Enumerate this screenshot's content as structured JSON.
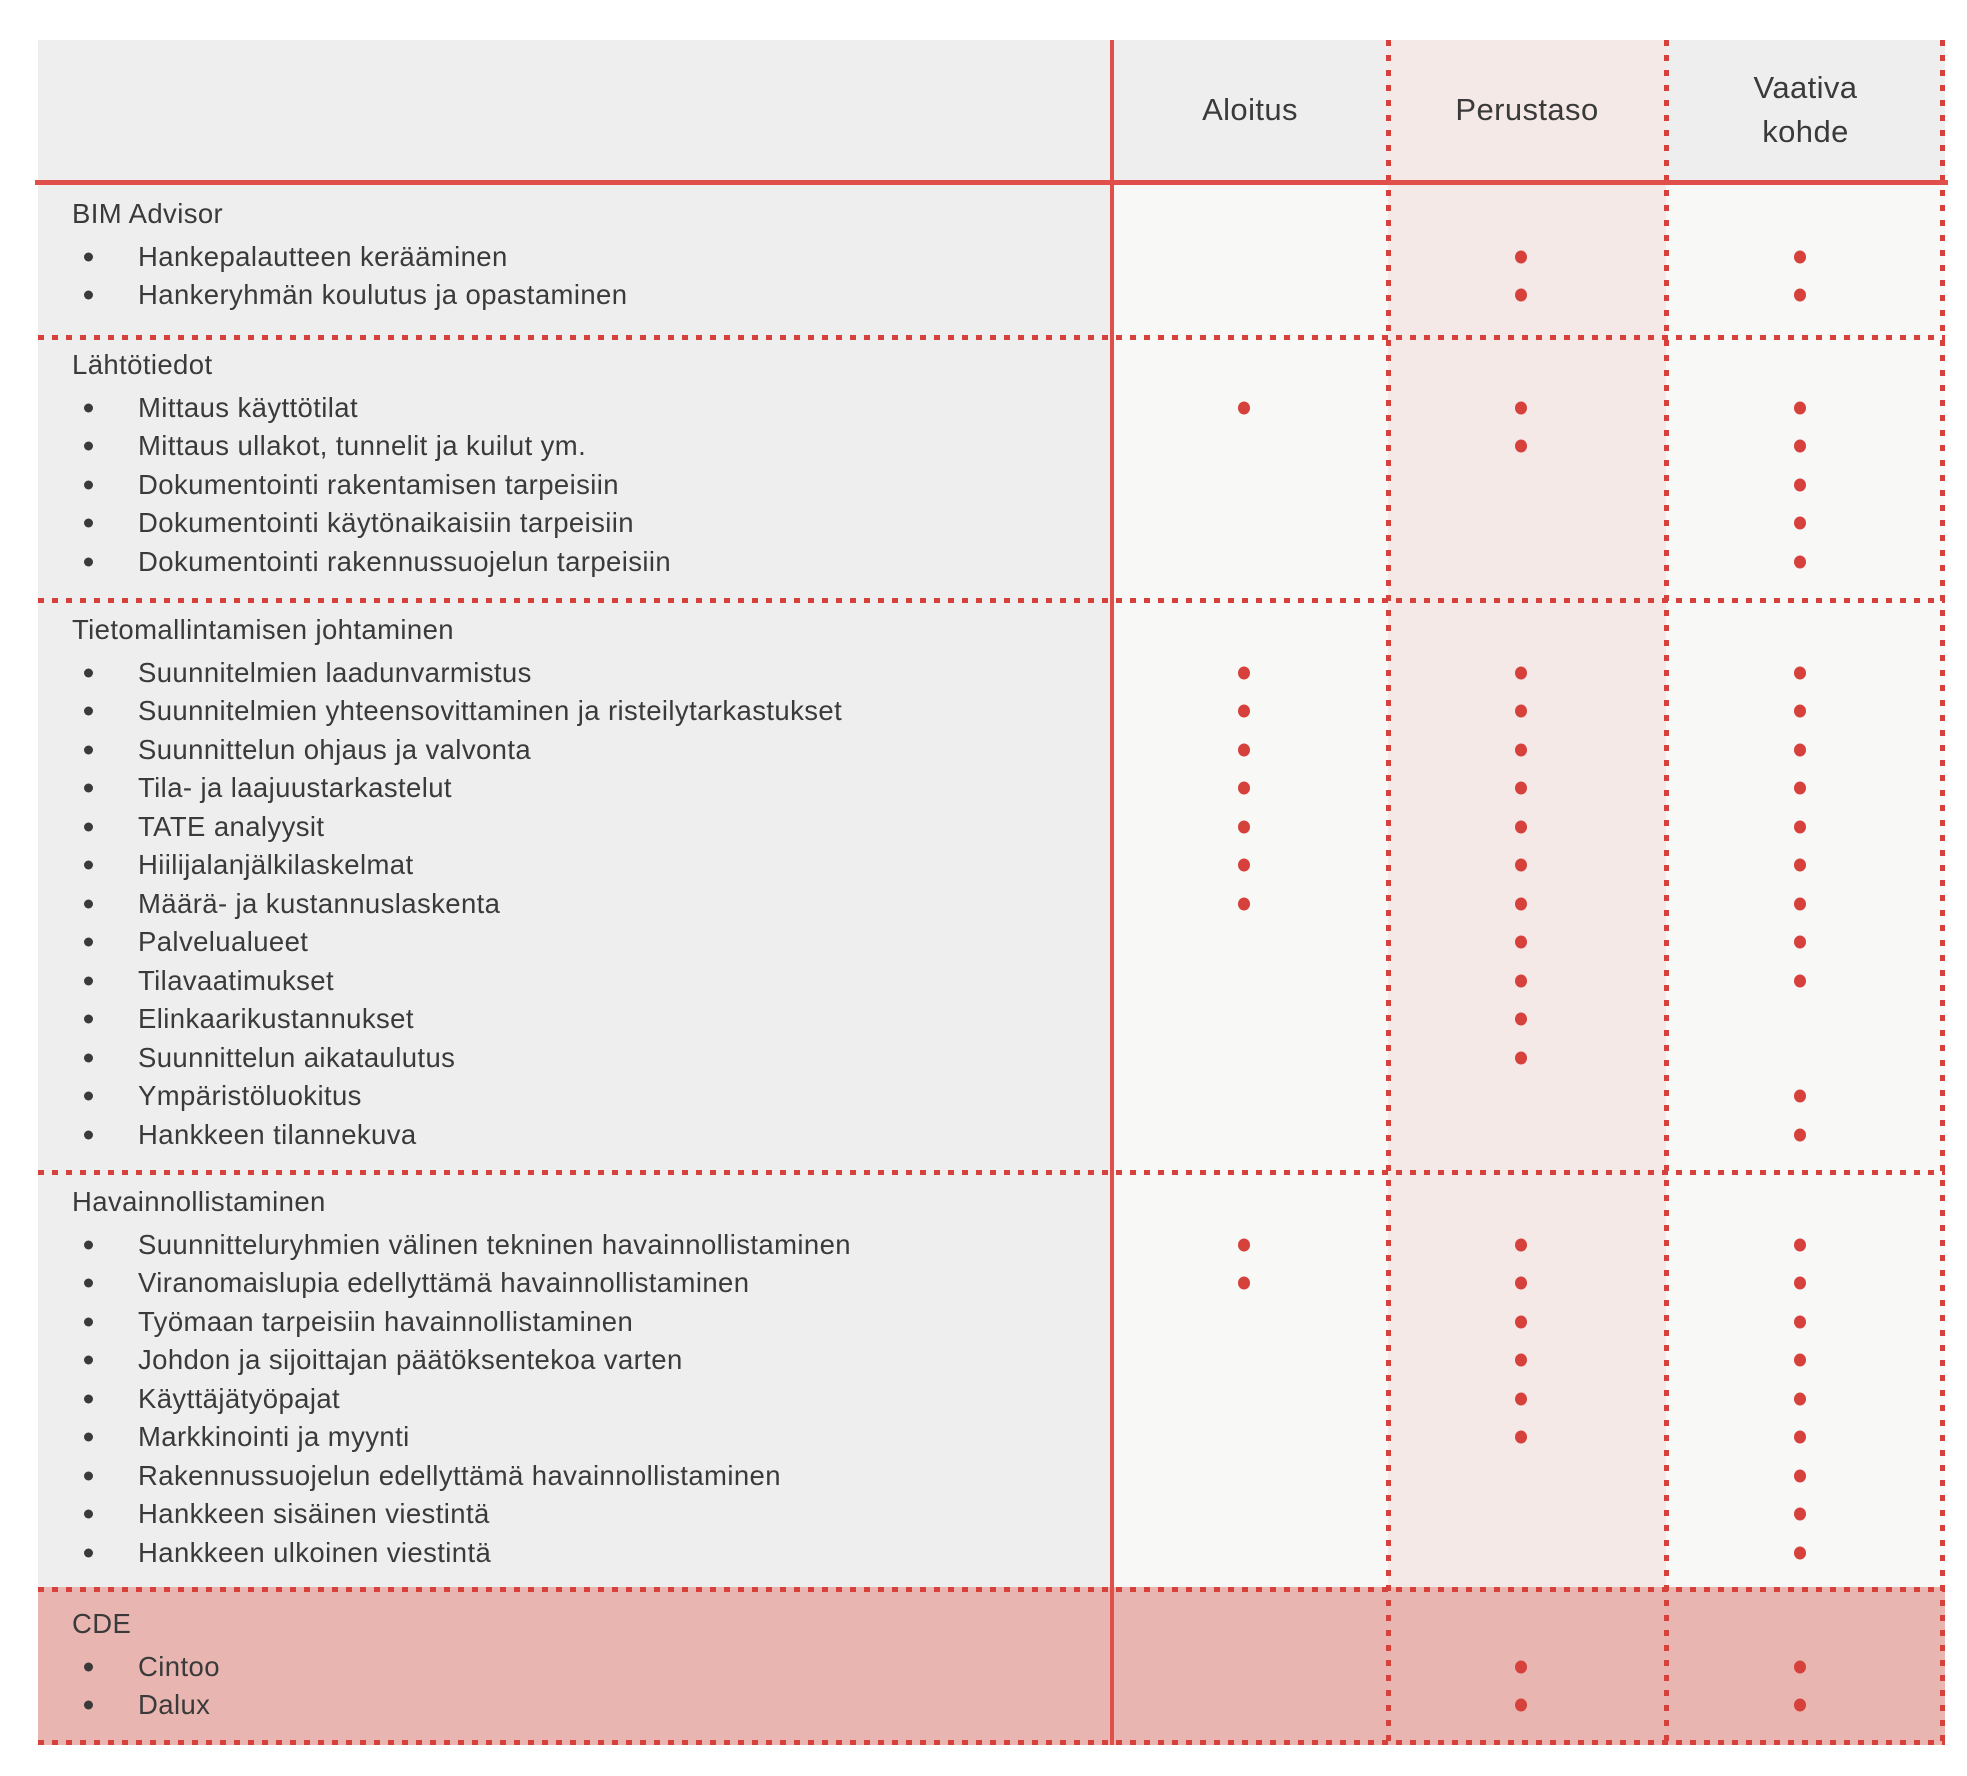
{
  "colors": {
    "line_red": "#e04f4a",
    "dot_red": "#d6413c",
    "perustaso_bg": "#f5e9e7",
    "cde_bg": "#e9b5b1"
  },
  "header": {
    "columns": [
      {
        "key": "aloitus",
        "label": "Aloitus"
      },
      {
        "key": "perustaso",
        "label": "Perustaso"
      },
      {
        "key": "vaativa-kohde",
        "label": "Vaativa kohde"
      }
    ]
  },
  "sections": [
    {
      "title": "BIM Advisor",
      "highlight": false,
      "rows": [
        {
          "label": "Hankepalautteen kerääminen",
          "dots": [
            false,
            true,
            true
          ]
        },
        {
          "label": "Hankeryhmän koulutus ja opastaminen",
          "dots": [
            false,
            true,
            true
          ]
        }
      ]
    },
    {
      "title": "Lähtötiedot",
      "highlight": false,
      "rows": [
        {
          "label": "Mittaus käyttötilat",
          "dots": [
            true,
            true,
            true
          ]
        },
        {
          "label": "Mittaus ullakot, tunnelit ja kuilut ym.",
          "dots": [
            false,
            true,
            true
          ]
        },
        {
          "label": "Dokumentointi rakentamisen tarpeisiin",
          "dots": [
            false,
            false,
            true
          ]
        },
        {
          "label": "Dokumentointi käytönaikaisiin tarpeisiin",
          "dots": [
            false,
            false,
            true
          ]
        },
        {
          "label": "Dokumentointi rakennussuojelun tarpeisiin",
          "dots": [
            false,
            false,
            true
          ]
        }
      ]
    },
    {
      "title": "Tietomallintamisen johtaminen",
      "highlight": false,
      "rows": [
        {
          "label": "Suunnitelmien laadunvarmistus",
          "dots": [
            true,
            true,
            true
          ]
        },
        {
          "label": "Suunnitelmien yhteensovittaminen ja risteilytarkastukset",
          "dots": [
            true,
            true,
            true
          ]
        },
        {
          "label": "Suunnittelun ohjaus ja valvonta",
          "dots": [
            true,
            true,
            true
          ]
        },
        {
          "label": "Tila- ja laajuustarkastelut",
          "dots": [
            true,
            true,
            true
          ]
        },
        {
          "label": "TATE analyysit",
          "dots": [
            true,
            true,
            true
          ]
        },
        {
          "label": "Hiilijalanjälkilaskelmat",
          "dots": [
            true,
            true,
            true
          ]
        },
        {
          "label": "Määrä- ja kustannuslaskenta",
          "dots": [
            true,
            true,
            true
          ]
        },
        {
          "label": "Palvelualueet",
          "dots": [
            false,
            true,
            true
          ]
        },
        {
          "label": "Tilavaatimukset",
          "dots": [
            false,
            true,
            true
          ]
        },
        {
          "label": "Elinkaarikustannukset",
          "dots": [
            false,
            true,
            false
          ]
        },
        {
          "label": "Suunnittelun aikataulutus",
          "dots": [
            false,
            true,
            false
          ]
        },
        {
          "label": "Ympäristöluokitus",
          "dots": [
            false,
            false,
            true
          ]
        },
        {
          "label": "Hankkeen tilannekuva",
          "dots": [
            false,
            false,
            true
          ]
        }
      ]
    },
    {
      "title": "Havainnollistaminen",
      "highlight": false,
      "rows": [
        {
          "label": "Suunnitteluryhmien välinen tekninen havainnollistaminen",
          "dots": [
            true,
            true,
            true
          ]
        },
        {
          "label": "Viranomaislupia edellyttämä havainnollistaminen",
          "dots": [
            true,
            true,
            true
          ]
        },
        {
          "label": "Työmaan tarpeisiin havainnollistaminen",
          "dots": [
            false,
            true,
            true
          ]
        },
        {
          "label": "Johdon ja sijoittajan päätöksentekoa varten",
          "dots": [
            false,
            true,
            true
          ]
        },
        {
          "label": "Käyttäjätyöpajat",
          "dots": [
            false,
            true,
            true
          ]
        },
        {
          "label": "Markkinointi ja myynti",
          "dots": [
            false,
            true,
            true
          ]
        },
        {
          "label": "Rakennussuojelun edellyttämä havainnollistaminen",
          "dots": [
            false,
            false,
            true
          ]
        },
        {
          "label": "Hankkeen sisäinen viestintä",
          "dots": [
            false,
            false,
            true
          ]
        },
        {
          "label": "Hankkeen ulkoinen viestintä",
          "dots": [
            false,
            false,
            true
          ]
        }
      ]
    },
    {
      "title": "CDE",
      "highlight": true,
      "rows": [
        {
          "label": "Cintoo",
          "dots": [
            false,
            true,
            true
          ]
        },
        {
          "label": "Dalux",
          "dots": [
            false,
            true,
            true
          ]
        }
      ]
    }
  ]
}
